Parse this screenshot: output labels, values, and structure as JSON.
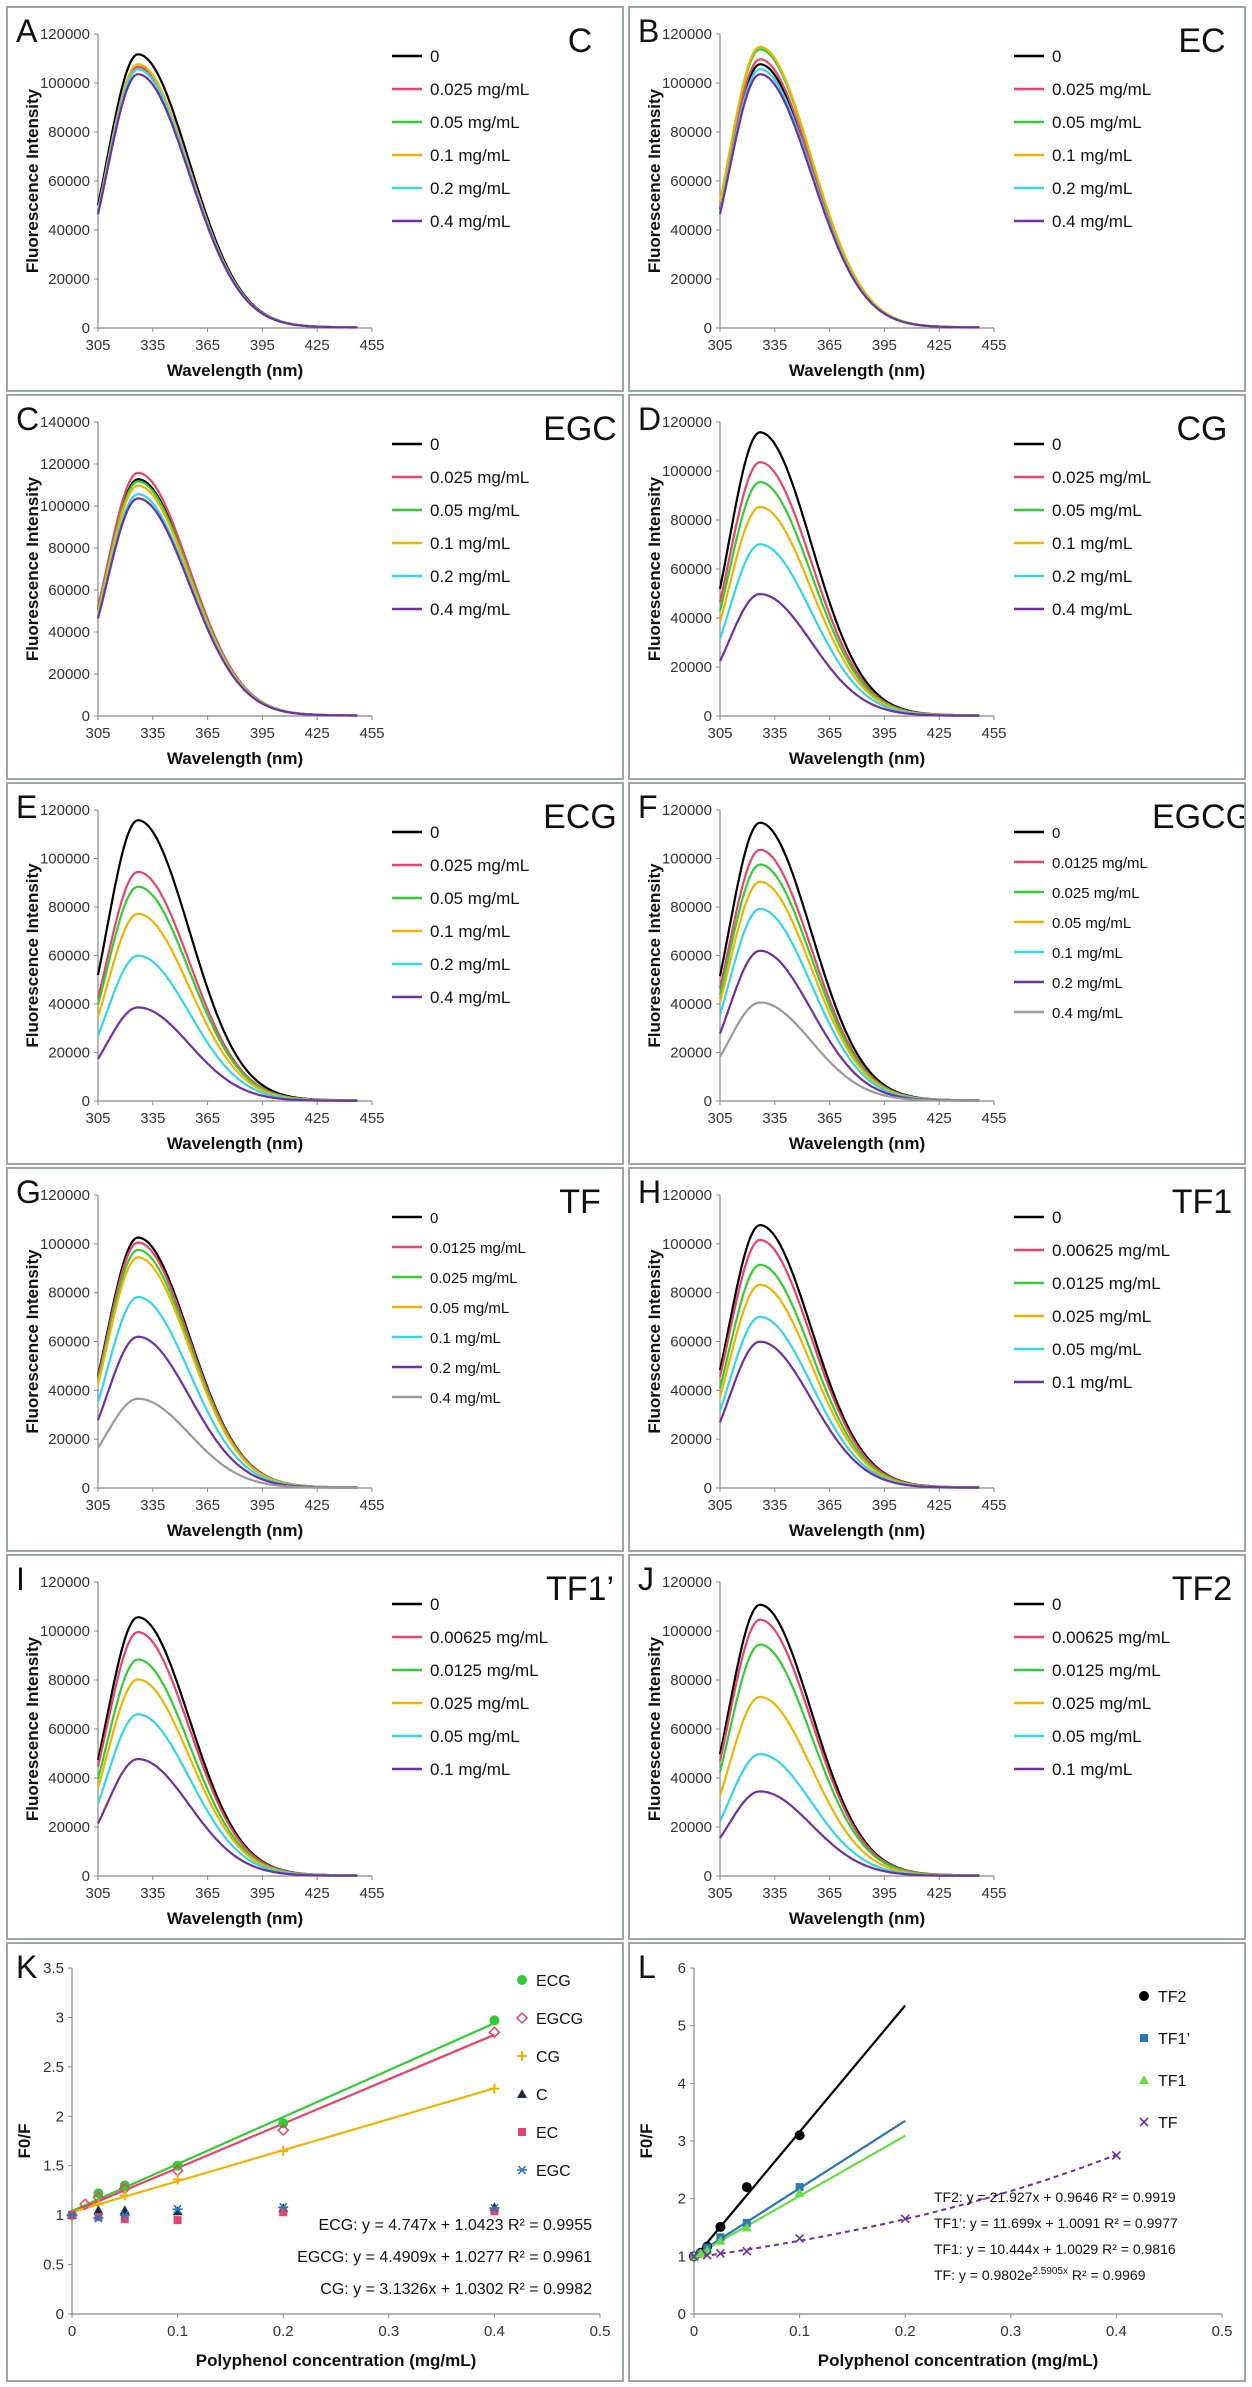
{
  "chart_data": [
    {
      "panel": "A",
      "compound": "C",
      "type": "line",
      "xlabel": "Wavelength (nm)",
      "ylabel": "Fluorescence Intensity",
      "xlim": [
        305,
        455
      ],
      "ylim": [
        0,
        120000
      ],
      "xticks": [
        305,
        335,
        365,
        395,
        425,
        455
      ],
      "yticks": [
        0,
        20000,
        40000,
        60000,
        80000,
        100000,
        120000
      ],
      "series": [
        {
          "name": "0",
          "color": "#000000",
          "peak": 110000
        },
        {
          "name": "0.025 mg/mL",
          "color": "#e8436a",
          "peak": 105000
        },
        {
          "name": "0.05 mg/mL",
          "color": "#33cc33",
          "peak": 104000
        },
        {
          "name": "0.1 mg/mL",
          "color": "#f0b400",
          "peak": 106000
        },
        {
          "name": "0.2 mg/mL",
          "color": "#33d6e8",
          "peak": 104000
        },
        {
          "name": "0.4 mg/mL",
          "color": "#7030a0",
          "peak": 102000
        }
      ]
    },
    {
      "panel": "B",
      "compound": "EC",
      "type": "line",
      "xlabel": "Wavelength (nm)",
      "ylabel": "Fluorescence Intensity",
      "xlim": [
        305,
        455
      ],
      "ylim": [
        0,
        120000
      ],
      "xticks": [
        305,
        335,
        365,
        395,
        425,
        455
      ],
      "yticks": [
        0,
        20000,
        40000,
        60000,
        80000,
        100000,
        120000
      ],
      "series": [
        {
          "name": "0",
          "color": "#000000",
          "peak": 106000
        },
        {
          "name": "0.025 mg/mL",
          "color": "#e8436a",
          "peak": 108000
        },
        {
          "name": "0.05 mg/mL",
          "color": "#33cc33",
          "peak": 112000
        },
        {
          "name": "0.1 mg/mL",
          "color": "#f0b400",
          "peak": 113000
        },
        {
          "name": "0.2 mg/mL",
          "color": "#33d6e8",
          "peak": 104000
        },
        {
          "name": "0.4 mg/mL",
          "color": "#7030a0",
          "peak": 102000
        }
      ]
    },
    {
      "panel": "C",
      "compound": "EGC",
      "type": "line",
      "xlabel": "Wavelength (nm)",
      "ylabel": "Fluorescence Intensity",
      "xlim": [
        305,
        455
      ],
      "ylim": [
        0,
        140000
      ],
      "xticks": [
        305,
        335,
        365,
        395,
        425,
        455
      ],
      "yticks": [
        0,
        20000,
        40000,
        60000,
        80000,
        100000,
        120000,
        140000
      ],
      "series": [
        {
          "name": "0",
          "color": "#000000",
          "peak": 111000
        },
        {
          "name": "0.025 mg/mL",
          "color": "#e8436a",
          "peak": 114000
        },
        {
          "name": "0.05 mg/mL",
          "color": "#33cc33",
          "peak": 110000
        },
        {
          "name": "0.1 mg/mL",
          "color": "#f0b400",
          "peak": 108000
        },
        {
          "name": "0.2 mg/mL",
          "color": "#33d6e8",
          "peak": 104000
        },
        {
          "name": "0.4 mg/mL",
          "color": "#7030a0",
          "peak": 102000
        }
      ]
    },
    {
      "panel": "D",
      "compound": "CG",
      "type": "line",
      "xlabel": "Wavelength (nm)",
      "ylabel": "Fluorescence Intensity",
      "xlim": [
        305,
        455
      ],
      "ylim": [
        0,
        120000
      ],
      "xticks": [
        305,
        335,
        365,
        395,
        425,
        455
      ],
      "yticks": [
        0,
        20000,
        40000,
        60000,
        80000,
        100000,
        120000
      ],
      "series": [
        {
          "name": "0",
          "color": "#000000",
          "peak": 114000
        },
        {
          "name": "0.025 mg/mL",
          "color": "#e8436a",
          "peak": 102000
        },
        {
          "name": "0.05 mg/mL",
          "color": "#33cc33",
          "peak": 94000
        },
        {
          "name": "0.1 mg/mL",
          "color": "#f0b400",
          "peak": 84000
        },
        {
          "name": "0.2 mg/mL",
          "color": "#33d6e8",
          "peak": 69000
        },
        {
          "name": "0.4 mg/mL",
          "color": "#7030a0",
          "peak": 49000
        }
      ]
    },
    {
      "panel": "E",
      "compound": "ECG",
      "type": "line",
      "xlabel": "Wavelength (nm)",
      "ylabel": "Fluorescence Intensity",
      "xlim": [
        305,
        455
      ],
      "ylim": [
        0,
        120000
      ],
      "xticks": [
        305,
        335,
        365,
        395,
        425,
        455
      ],
      "yticks": [
        0,
        20000,
        40000,
        60000,
        80000,
        100000,
        120000
      ],
      "series": [
        {
          "name": "0",
          "color": "#000000",
          "peak": 114000
        },
        {
          "name": "0.025 mg/mL",
          "color": "#e8436a",
          "peak": 93000
        },
        {
          "name": "0.05 mg/mL",
          "color": "#33cc33",
          "peak": 87000
        },
        {
          "name": "0.1 mg/mL",
          "color": "#f0b400",
          "peak": 76000
        },
        {
          "name": "0.2 mg/mL",
          "color": "#33d6e8",
          "peak": 59000
        },
        {
          "name": "0.4 mg/mL",
          "color": "#7030a0",
          "peak": 38000
        }
      ]
    },
    {
      "panel": "F",
      "compound": "EGCG",
      "type": "line",
      "xlabel": "Wavelength (nm)",
      "ylabel": "Fluorescence Intensity",
      "xlim": [
        305,
        455
      ],
      "ylim": [
        0,
        120000
      ],
      "xticks": [
        305,
        335,
        365,
        395,
        425,
        455
      ],
      "yticks": [
        0,
        20000,
        40000,
        60000,
        80000,
        100000,
        120000
      ],
      "series": [
        {
          "name": "0",
          "color": "#000000",
          "peak": 113000
        },
        {
          "name": "0.0125 mg/mL",
          "color": "#e8436a",
          "peak": 102000
        },
        {
          "name": "0.025 mg/mL",
          "color": "#33cc33",
          "peak": 96000
        },
        {
          "name": "0.05 mg/mL",
          "color": "#f0b400",
          "peak": 89000
        },
        {
          "name": "0.1 mg/mL",
          "color": "#33d6e8",
          "peak": 78000
        },
        {
          "name": "0.2 mg/mL",
          "color": "#7030a0",
          "peak": 61000
        },
        {
          "name": "0.4 mg/mL",
          "color": "#9a9a9a",
          "peak": 40000
        }
      ]
    },
    {
      "panel": "G",
      "compound": "TF",
      "type": "line",
      "xlabel": "Wavelength (nm)",
      "ylabel": "Fluorescence Intensity",
      "xlim": [
        305,
        455
      ],
      "ylim": [
        0,
        120000
      ],
      "xticks": [
        305,
        335,
        365,
        395,
        425,
        455
      ],
      "yticks": [
        0,
        20000,
        40000,
        60000,
        80000,
        100000,
        120000
      ],
      "series": [
        {
          "name": "0",
          "color": "#000000",
          "peak": 101000
        },
        {
          "name": "0.0125 mg/mL",
          "color": "#e8436a",
          "peak": 99000
        },
        {
          "name": "0.025 mg/mL",
          "color": "#33cc33",
          "peak": 96000
        },
        {
          "name": "0.05 mg/mL",
          "color": "#f0b400",
          "peak": 93000
        },
        {
          "name": "0.1 mg/mL",
          "color": "#33d6e8",
          "peak": 77000
        },
        {
          "name": "0.2 mg/mL",
          "color": "#7030a0",
          "peak": 61000
        },
        {
          "name": "0.4 mg/mL",
          "color": "#9a9a9a",
          "peak": 36000
        }
      ]
    },
    {
      "panel": "H",
      "compound": "TF1",
      "type": "line",
      "xlabel": "Wavelength (nm)",
      "ylabel": "Fluorescence Intensity",
      "xlim": [
        305,
        455
      ],
      "ylim": [
        0,
        120000
      ],
      "xticks": [
        305,
        335,
        365,
        395,
        425,
        455
      ],
      "yticks": [
        0,
        20000,
        40000,
        60000,
        80000,
        100000,
        120000
      ],
      "series": [
        {
          "name": "0",
          "color": "#000000",
          "peak": 106000
        },
        {
          "name": "0.00625 mg/mL",
          "color": "#e8436a",
          "peak": 100000
        },
        {
          "name": "0.0125 mg/mL",
          "color": "#33cc33",
          "peak": 90000
        },
        {
          "name": "0.025 mg/mL",
          "color": "#f0b400",
          "peak": 82000
        },
        {
          "name": "0.05 mg/mL",
          "color": "#33d6e8",
          "peak": 69000
        },
        {
          "name": "0.1 mg/mL",
          "color": "#7030a0",
          "peak": 59000
        }
      ]
    },
    {
      "panel": "I",
      "compound": "TF1’",
      "type": "line",
      "xlabel": "Wavelength (nm)",
      "ylabel": "Fluorescence Intensity",
      "xlim": [
        305,
        455
      ],
      "ylim": [
        0,
        120000
      ],
      "xticks": [
        305,
        335,
        365,
        395,
        425,
        455
      ],
      "yticks": [
        0,
        20000,
        40000,
        60000,
        80000,
        100000,
        120000
      ],
      "series": [
        {
          "name": "0",
          "color": "#000000",
          "peak": 104000
        },
        {
          "name": "0.00625 mg/mL",
          "color": "#e8436a",
          "peak": 98000
        },
        {
          "name": "0.0125 mg/mL",
          "color": "#33cc33",
          "peak": 87000
        },
        {
          "name": "0.025 mg/mL",
          "color": "#f0b400",
          "peak": 79000
        },
        {
          "name": "0.05 mg/mL",
          "color": "#33d6e8",
          "peak": 65000
        },
        {
          "name": "0.1 mg/mL",
          "color": "#7030a0",
          "peak": 47000
        }
      ]
    },
    {
      "panel": "J",
      "compound": "TF2",
      "type": "line",
      "xlabel": "Wavelength (nm)",
      "ylabel": "Fluorescence Intensity",
      "xlim": [
        305,
        455
      ],
      "ylim": [
        0,
        120000
      ],
      "xticks": [
        305,
        335,
        365,
        395,
        425,
        455
      ],
      "yticks": [
        0,
        20000,
        40000,
        60000,
        80000,
        100000,
        120000
      ],
      "series": [
        {
          "name": "0",
          "color": "#000000",
          "peak": 109000
        },
        {
          "name": "0.00625 mg/mL",
          "color": "#e8436a",
          "peak": 103000
        },
        {
          "name": "0.0125 mg/mL",
          "color": "#33cc33",
          "peak": 93000
        },
        {
          "name": "0.025 mg/mL",
          "color": "#f0b400",
          "peak": 72000
        },
        {
          "name": "0.05 mg/mL",
          "color": "#33d6e8",
          "peak": 49000
        },
        {
          "name": "0.1 mg/mL",
          "color": "#7030a0",
          "peak": 34000
        }
      ]
    },
    {
      "panel": "K",
      "type": "scatter",
      "xlabel": "Polyphenol concentration (mg/mL)",
      "ylabel": "F0/F",
      "xlim": [
        0,
        0.5
      ],
      "ylim": [
        0,
        3.5
      ],
      "xticks": [
        0,
        0.1,
        0.2,
        0.3,
        0.4,
        0.5
      ],
      "yticks": [
        0,
        0.5,
        1,
        1.5,
        2,
        2.5,
        3,
        3.5
      ],
      "series": [
        {
          "name": "ECG",
          "color": "#33cc33",
          "marker": "circle",
          "x": [
            0,
            0.025,
            0.05,
            0.1,
            0.2,
            0.4
          ],
          "y": [
            1.0,
            1.22,
            1.3,
            1.5,
            1.93,
            2.97
          ],
          "fit": {
            "kind": "linear",
            "slope": 4.747,
            "intercept": 1.0423
          }
        },
        {
          "name": "EGCG",
          "color": "#e8436a",
          "marker": "diamond",
          "x": [
            0,
            0.0125,
            0.025,
            0.05,
            0.1,
            0.2,
            0.4
          ],
          "y": [
            1.0,
            1.11,
            1.18,
            1.27,
            1.45,
            1.86,
            2.85
          ],
          "fit": {
            "kind": "linear",
            "slope": 4.4909,
            "intercept": 1.0277
          }
        },
        {
          "name": "CG",
          "color": "#f0b400",
          "marker": "plus",
          "x": [
            0,
            0.025,
            0.05,
            0.1,
            0.2,
            0.4
          ],
          "y": [
            1.0,
            1.11,
            1.2,
            1.36,
            1.65,
            2.28
          ],
          "fit": {
            "kind": "linear",
            "slope": 3.1326,
            "intercept": 1.0302
          }
        },
        {
          "name": "C",
          "color": "#1f2a44",
          "marker": "triangle",
          "x": [
            0,
            0.025,
            0.05,
            0.1,
            0.2,
            0.4
          ],
          "y": [
            1.0,
            1.05,
            1.05,
            1.04,
            1.07,
            1.08
          ]
        },
        {
          "name": "EC",
          "color": "#e8436a",
          "marker": "square",
          "x": [
            0,
            0.025,
            0.05,
            0.1,
            0.2,
            0.4
          ],
          "y": [
            1.0,
            0.98,
            0.96,
            0.95,
            1.03,
            1.04
          ]
        },
        {
          "name": "EGC",
          "color": "#2e75b6",
          "marker": "star",
          "x": [
            0,
            0.025,
            0.05,
            0.1,
            0.2,
            0.4
          ],
          "y": [
            1.0,
            0.97,
            1.0,
            1.06,
            1.08,
            1.07
          ]
        }
      ],
      "equations": [
        "ECG: y = 4.747x + 1.0423 R² = 0.9955",
        "EGCG: y = 4.4909x + 1.0277 R² = 0.9961",
        "CG: y = 3.1326x + 1.0302 R² = 0.9982"
      ]
    },
    {
      "panel": "L",
      "type": "scatter",
      "xlabel": "Polyphenol concentration (mg/mL)",
      "ylabel": "F0/F",
      "xlim": [
        0,
        0.5
      ],
      "ylim": [
        0,
        6
      ],
      "xticks": [
        0,
        0.1,
        0.2,
        0.3,
        0.4,
        0.5
      ],
      "yticks": [
        0,
        1,
        2,
        3,
        4,
        5,
        6
      ],
      "series": [
        {
          "name": "TF2",
          "color": "#000000",
          "marker": "circle",
          "x": [
            0,
            0.00625,
            0.0125,
            0.025,
            0.05,
            0.1
          ],
          "y": [
            1.0,
            1.06,
            1.17,
            1.51,
            2.2,
            3.1
          ],
          "fit": {
            "kind": "linear",
            "slope": 21.927,
            "intercept": 0.9646,
            "xmax": 0.2
          }
        },
        {
          "name": "TF1’",
          "color": "#2e75b6",
          "marker": "square",
          "x": [
            0,
            0.00625,
            0.0125,
            0.025,
            0.05,
            0.1
          ],
          "y": [
            1.0,
            1.05,
            1.15,
            1.33,
            1.58,
            2.2
          ],
          "fit": {
            "kind": "linear",
            "slope": 11.699,
            "intercept": 1.0091,
            "xmax": 0.2
          }
        },
        {
          "name": "TF1",
          "color": "#66dd44",
          "marker": "triangle",
          "x": [
            0,
            0.00625,
            0.0125,
            0.025,
            0.05,
            0.1
          ],
          "y": [
            1.0,
            1.05,
            1.1,
            1.27,
            1.5,
            2.1
          ],
          "fit": {
            "kind": "linear",
            "slope": 10.444,
            "intercept": 1.0029,
            "xmax": 0.2
          }
        },
        {
          "name": "TF",
          "color": "#7030a0",
          "marker": "cross",
          "x": [
            0,
            0.0125,
            0.025,
            0.05,
            0.1,
            0.2,
            0.4
          ],
          "y": [
            1.0,
            1.02,
            1.05,
            1.09,
            1.31,
            1.65,
            2.75
          ],
          "fit": {
            "kind": "exp",
            "a": 0.9802,
            "b": 2.5905,
            "xmax": 0.4
          }
        }
      ],
      "equations": [
        "TF2: y = 21.927x + 0.9646 R² = 0.9919",
        "TF1’: y = 11.699x + 1.0091 R² = 0.9977",
        "TF1: y = 10.444x + 1.0029 R² = 0.9816",
        "TF: y = 0.9802e",
        "2.5905x",
        " R² = 0.9969"
      ]
    }
  ]
}
